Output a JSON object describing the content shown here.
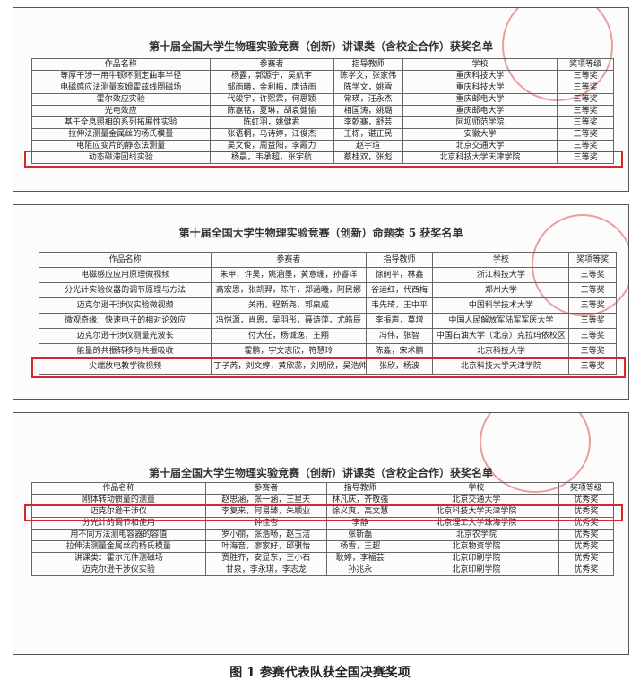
{
  "panels": [
    {
      "title": "第十届全国大学生物理实验竞赛（创新）讲课类（含校企合作）获奖名单",
      "headers": [
        "作品名称",
        "参赛者",
        "指导教师",
        "学校",
        "奖项等级"
      ],
      "rows": [
        {
          "cells": [
            "等厚干涉一用牛顿环测定曲率半径",
            "杨露，郭源宁，吴航宇",
            "陈学文，张家伟",
            "重庆科技大学",
            "三等奖"
          ]
        },
        {
          "cells": [
            "电磁感应法测量亥姆霍兹线圈磁场",
            "邹雨曦，金利梅，唐诗雨",
            "陈学文，姚雪",
            "重庆科技大学",
            "三等奖"
          ]
        },
        {
          "cells": [
            "霍尔效应实验",
            "代竣宇，许熙霖，何思颖",
            "常瑛，汪永杰",
            "重庆邮电大学",
            "三等奖"
          ]
        },
        {
          "cells": [
            "光电效应",
            "陈嘉铭，夏琳，胡袁健愉",
            "相国涛，姚璐",
            "重庆邮电大学",
            "三等奖"
          ]
        },
        {
          "cells": [
            "基于全息照相的系列拓展性实验",
            "陈虹羽，姚健君",
            "李乾骞，舒芸",
            "阿坝师范学院",
            "三等奖"
          ]
        },
        {
          "cells": [
            "拉伸法测量金属丝的杨氏模量",
            "张语桐，马诗婷，江俊杰",
            "王栋，谌正民",
            "安徽大学",
            "三等奖"
          ]
        },
        {
          "cells": [
            "电阻应变片的静态法测量",
            "吴文俊，周益阳，李霞力",
            "赵宇瑄",
            "北京交通大学",
            "三等奖"
          ]
        },
        {
          "cells": [
            "动态磁滞回线实验",
            "杨晨，韦承超，张宇航",
            "蔡桂双，张彪",
            "北京科技大学天津学院",
            "三等奖"
          ],
          "highlighted": true
        }
      ]
    },
    {
      "title": "第十届全国大学生物理实验竞赛（创新）命题类 5 获奖名单",
      "headers": [
        "作品名称",
        "参赛者",
        "指导教师",
        "学校",
        "奖项等奖"
      ],
      "rows": [
        {
          "cells": [
            "电磁感应应用原理微视频",
            "朱甲，许昊，姚涵墨，黄意珊，孙睿洋",
            "徐舸平，林鑫",
            "浙江科技大学",
            "三等奖"
          ]
        },
        {
          "cells": [
            "分光计实验仪器的调节原理与方法",
            "高宏恩，张凯羿，陈午，郑涵曦，阿民娜",
            "谷运红，代西梅",
            "郑州大学",
            "三等奖"
          ]
        },
        {
          "cells": [
            "迈克尔逊干涉仪实验微视频",
            "关雨，程新尧，郭泉威",
            "韦先琦，王中平",
            "中国科学技术大学",
            "三等奖"
          ]
        },
        {
          "cells": [
            "微观奇缘：快速电子的相对论效应",
            "冯恺源，肖恩，吴羽彤，聂诗萍，尤皓辰",
            "李振声，莫增",
            "中国人民解放军陆军军医大学",
            "三等奖"
          ]
        },
        {
          "cells": [
            "迈克尔逊干涉仪测量光波长",
            "付大任，杨诚逸，王翔",
            "冯伟，张智",
            "中国石油大学（北京）克拉玛依校区",
            "三等奖"
          ]
        },
        {
          "cells": [
            "能量的共振转移与共振吸收",
            "霍鹏，宇文志欣，符慧玲",
            "陈淼，宋术鹏",
            "北京科技大学",
            "三等奖"
          ]
        },
        {
          "cells": [
            "尖端放电教学微视频",
            "丁子芮，刘文婷，黄欣蕊，刘明欣，吴浩帅",
            "张欣，杨波",
            "北京科技大学天津学院",
            "三等奖"
          ],
          "highlighted": true
        }
      ]
    },
    {
      "title": "第十届全国大学生物理实验竞赛（创新）讲课类（含校企合作）获奖名单",
      "headers": [
        "作品名称",
        "参赛者",
        "指导教师",
        "学校",
        "奖项等级"
      ],
      "rows": [
        {
          "cells": [
            "刚体转动惯量的测量",
            "赵思涵，张一涵，王星天",
            "林凡庆，齐敬强",
            "北京交通大学",
            "优秀奖"
          ]
        },
        {
          "cells": [
            "迈克尔逊干涉仪",
            "李复来，何易臻，朱顺业",
            "徐义爽，高文慧",
            "北京科技大学天津学院",
            "优秀奖"
          ],
          "highlighted": true
        },
        {
          "cells": [
            "分光计的调节和使用",
            "钟佳杏",
            "李静",
            "北京理工大学珠海学院",
            "优秀奖"
          ]
        },
        {
          "cells": [
            "用不同方法测电容器的容值",
            "罗小丽，张浩畅，赵玉洁",
            "张新磊",
            "北京农学院",
            "优秀奖"
          ]
        },
        {
          "cells": [
            "拉伸法测量金属丝的杨氏模量",
            "叶海音，廖家好，邱骐怡",
            "杨雪，王超",
            "北京物资学院",
            "优秀奖"
          ]
        },
        {
          "cells": [
            "讲课类：霍尔元件测磁场",
            "贾胜齐，安显东，王小石",
            "耿婷，李福芸",
            "北京印刷学院",
            "优秀奖"
          ]
        },
        {
          "cells": [
            "迈克尔逊干涉仪实验",
            "甘泉，李永琪，李志龙",
            "孙兆永",
            "北京印刷学院",
            "优秀奖"
          ]
        }
      ]
    }
  ],
  "caption": "图 1 参赛代表队获全国决赛奖项"
}
